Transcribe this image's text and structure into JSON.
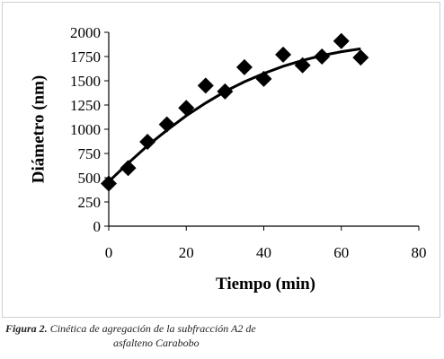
{
  "chart_data": {
    "type": "scatter",
    "xlabel": "Tiempo (min)",
    "ylabel": "Diámetro (nm)",
    "xlim": [
      0,
      80
    ],
    "ylim": [
      0,
      2000
    ],
    "xticks": [
      "0",
      "20",
      "40",
      "60",
      "80"
    ],
    "yticks": [
      "0",
      "250",
      "500",
      "750",
      "1000",
      "1250",
      "1500",
      "1750",
      "2000"
    ],
    "grid": false,
    "legend": "none",
    "marker": "diamond",
    "color": "#000000",
    "points": [
      {
        "x": 0,
        "y": 440
      },
      {
        "x": 5,
        "y": 600
      },
      {
        "x": 10,
        "y": 870
      },
      {
        "x": 15,
        "y": 1050
      },
      {
        "x": 20,
        "y": 1220
      },
      {
        "x": 25,
        "y": 1450
      },
      {
        "x": 30,
        "y": 1390
      },
      {
        "x": 35,
        "y": 1640
      },
      {
        "x": 40,
        "y": 1520
      },
      {
        "x": 45,
        "y": 1770
      },
      {
        "x": 50,
        "y": 1660
      },
      {
        "x": 55,
        "y": 1750
      },
      {
        "x": 60,
        "y": 1910
      },
      {
        "x": 65,
        "y": 1740
      }
    ],
    "trendline": {
      "type": "polynomial",
      "x": [
        0,
        5,
        10,
        15,
        20,
        25,
        30,
        35,
        40,
        45,
        50,
        55,
        60,
        65
      ],
      "y": [
        460,
        650,
        830,
        990,
        1140,
        1270,
        1390,
        1490,
        1575,
        1650,
        1710,
        1760,
        1800,
        1830
      ]
    }
  },
  "caption": {
    "label": "Figura 2.",
    "line1": " Cinética de agregación de la subfracción A2 de",
    "line2": "asfalteno Carabobo"
  }
}
